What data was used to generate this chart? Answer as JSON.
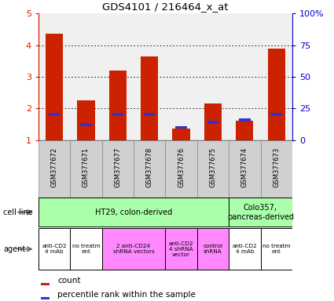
{
  "title": "GDS4101 / 216464_x_at",
  "samples": [
    "GSM377672",
    "GSM377671",
    "GSM377677",
    "GSM377678",
    "GSM377676",
    "GSM377675",
    "GSM377674",
    "GSM377673"
  ],
  "counts": [
    4.35,
    2.25,
    3.2,
    3.65,
    1.35,
    2.15,
    1.6,
    3.9
  ],
  "percentile_ranks": [
    20,
    12,
    20,
    20,
    10,
    14,
    16,
    20
  ],
  "bar_color": "#cc2200",
  "percentile_color": "#3333cc",
  "ylim_left": [
    1,
    5
  ],
  "ylim_right": [
    0,
    100
  ],
  "yticks_left": [
    1,
    2,
    3,
    4,
    5
  ],
  "yticks_right": [
    0,
    25,
    50,
    75,
    100
  ],
  "yticklabels_right": [
    "0",
    "25",
    "50",
    "75",
    "100%"
  ],
  "bar_bg_color": "#f0f0f0",
  "tick_color_left": "#cc2200",
  "tick_color_right": "#0000cc",
  "cell_line_ht29_color": "#aaffaa",
  "cell_line_colo_color": "#aaffaa",
  "agent_white_color": "#ffffff",
  "agent_pink_color": "#ff88ff",
  "sample_box_color": "#d0d0d0",
  "sample_box_edge": "#888888"
}
